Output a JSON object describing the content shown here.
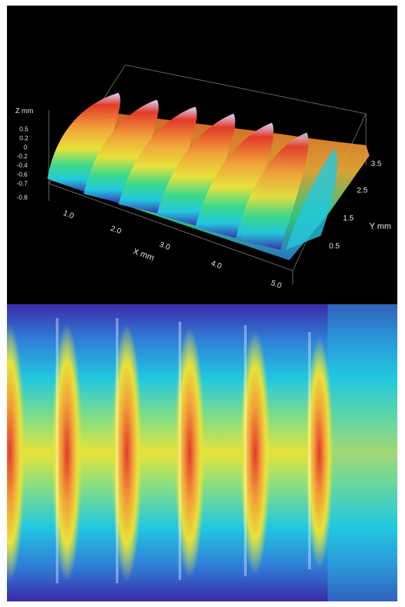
{
  "top_plot": {
    "z_axis": {
      "label": "Z mm",
      "ticks": [
        "0.5",
        "0.2",
        "0",
        "-0.2",
        "-0.4",
        "-0.6",
        "-0.7",
        "-0.8"
      ]
    },
    "x_axis": {
      "label": "X mm",
      "ticks": [
        "1.0",
        "2.0",
        "3.0",
        "4.0",
        "5.0"
      ]
    },
    "y_axis": {
      "label": "Y mm",
      "ticks": [
        "3.5",
        "2.5",
        "1.5",
        "0.5"
      ]
    },
    "ridge_count": 6
  },
  "bottom_map": {
    "ridge_count": 6
  },
  "colormap": [
    "#3a2aa8",
    "#2f7fd8",
    "#22c8e0",
    "#3ad98c",
    "#e8e23a",
    "#f2a23a",
    "#e23a2a"
  ]
}
